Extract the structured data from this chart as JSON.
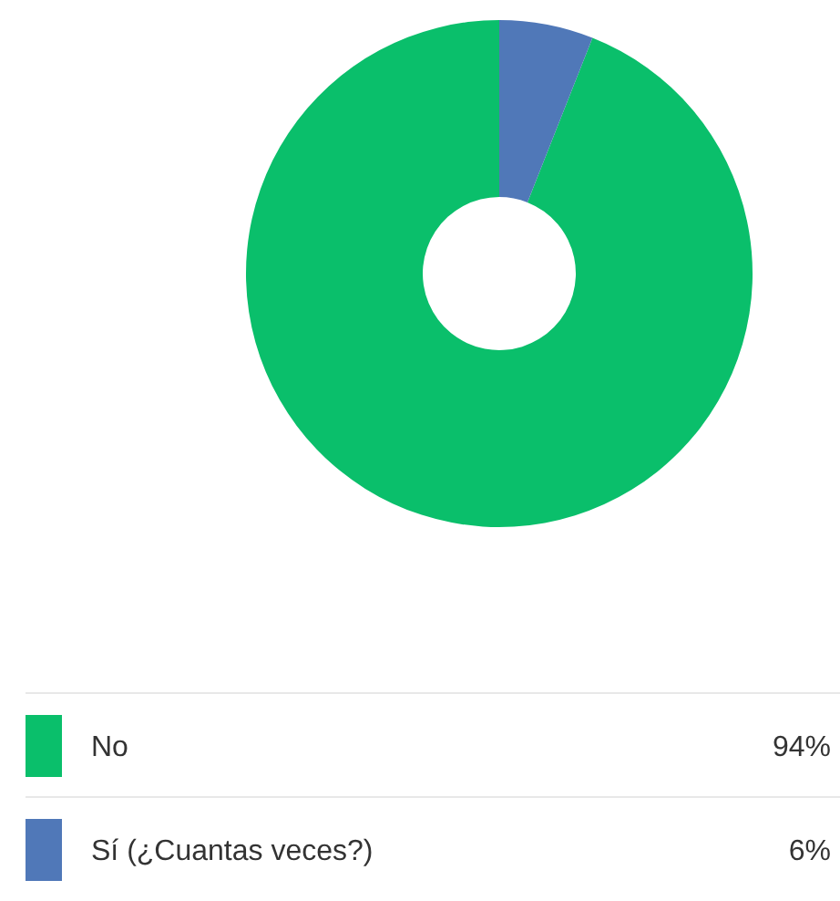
{
  "chart_data": {
    "type": "donut",
    "categories": [
      "No",
      "Sí (¿Cuantas veces?)"
    ],
    "values": [
      94,
      6
    ],
    "colors": [
      "#0abf6b",
      "#5078b8"
    ],
    "value_labels": [
      "94%",
      "6%"
    ],
    "legend": "bottom"
  }
}
